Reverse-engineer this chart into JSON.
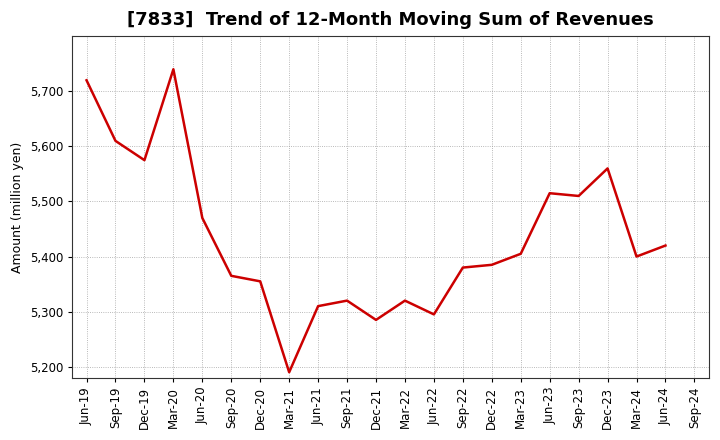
{
  "title": "[7833]  Trend of 12-Month Moving Sum of Revenues",
  "ylabel": "Amount (million yen)",
  "line_color": "#cc0000",
  "background_color": "#ffffff",
  "plot_bg_color": "#ffffff",
  "grid_color": "#999999",
  "ylim": [
    5180,
    5800
  ],
  "yticks": [
    5200,
    5300,
    5400,
    5500,
    5600,
    5700
  ],
  "labels": [
    "Jun-19",
    "Sep-19",
    "Dec-19",
    "Mar-20",
    "Jun-20",
    "Sep-20",
    "Dec-20",
    "Mar-21",
    "Jun-21",
    "Sep-21",
    "Dec-21",
    "Mar-22",
    "Jun-22",
    "Sep-22",
    "Dec-22",
    "Mar-23",
    "Jun-23",
    "Sep-23",
    "Dec-23",
    "Mar-24",
    "Jun-24",
    "Sep-24"
  ],
  "values": [
    5720,
    5610,
    5575,
    5740,
    5470,
    5365,
    5355,
    5190,
    5310,
    5320,
    5285,
    5320,
    5295,
    5380,
    5385,
    5405,
    5515,
    5510,
    5560,
    5400,
    5420,
    null
  ],
  "title_fontsize": 13,
  "ylabel_fontsize": 9,
  "tick_fontsize": 8.5,
  "linewidth": 1.8
}
